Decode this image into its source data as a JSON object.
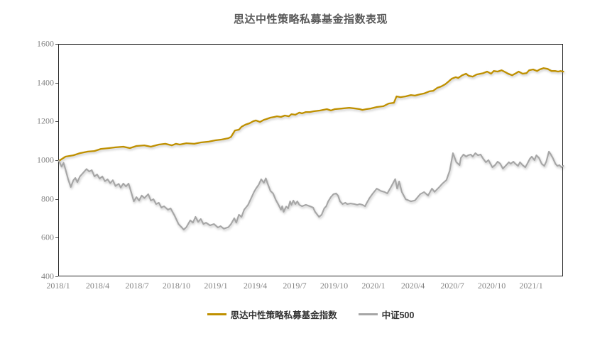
{
  "page": {
    "background": "#FFFFFF"
  },
  "colors": {
    "title_text": "#595959",
    "axis_label_text": "#848484",
    "plot_border": "#262626",
    "tick_mark": "#595959",
    "legend_text": "#333333"
  },
  "legend": {
    "position": "bottom-center"
  },
  "chart_data": {
    "type": "line",
    "title": "思达中性策略私募基金指数表现",
    "xlabel": "",
    "ylabel": "",
    "grid": "off",
    "legend_position": "bottom-center",
    "y_axis": {
      "min": 400,
      "max": 1600,
      "step": 200,
      "ticks": [
        400,
        600,
        800,
        1000,
        1200,
        1400,
        1600
      ]
    },
    "x_axis": {
      "unit": "months-since-2018/1",
      "min_month": 0,
      "max_month": 38.43,
      "tick_months": [
        0,
        3,
        6,
        9,
        12,
        15,
        18,
        21,
        24,
        27,
        30,
        33,
        36
      ],
      "tick_labels": [
        "2018/1",
        "2018/4",
        "2018/7",
        "2018/10",
        "2019/1",
        "2019/4",
        "2019/7",
        "2019/10",
        "2020/1",
        "2020/4",
        "2020/7",
        "2020/10",
        "2021/1"
      ]
    },
    "series": [
      {
        "name": "思达中性策略私募基金指数",
        "color": "#BF9000",
        "stroke_width": 2.3,
        "points": [
          [
            0,
            1000
          ],
          [
            0.5,
            1022
          ],
          [
            1.1,
            1029
          ],
          [
            1.6,
            1040
          ],
          [
            2.2,
            1048
          ],
          [
            2.7,
            1051
          ],
          [
            3.2,
            1062
          ],
          [
            3.8,
            1066
          ],
          [
            4.3,
            1070
          ],
          [
            4.9,
            1073
          ],
          [
            5.4,
            1066
          ],
          [
            5.9,
            1077
          ],
          [
            6.5,
            1080
          ],
          [
            7.0,
            1073
          ],
          [
            7.6,
            1084
          ],
          [
            8.1,
            1088
          ],
          [
            8.6,
            1080
          ],
          [
            8.9,
            1088
          ],
          [
            9.2,
            1084
          ],
          [
            9.7,
            1091
          ],
          [
            10.3,
            1088
          ],
          [
            10.8,
            1095
          ],
          [
            11.4,
            1099
          ],
          [
            11.9,
            1106
          ],
          [
            12.4,
            1110
          ],
          [
            12.9,
            1117
          ],
          [
            13.1,
            1124
          ],
          [
            13.4,
            1157
          ],
          [
            13.7,
            1161
          ],
          [
            13.9,
            1176
          ],
          [
            14.2,
            1187
          ],
          [
            14.5,
            1194
          ],
          [
            14.8,
            1205
          ],
          [
            15.0,
            1209
          ],
          [
            15.3,
            1201
          ],
          [
            15.6,
            1212
          ],
          [
            15.8,
            1216
          ],
          [
            16.1,
            1223
          ],
          [
            16.4,
            1227
          ],
          [
            16.6,
            1230
          ],
          [
            16.9,
            1227
          ],
          [
            17.2,
            1234
          ],
          [
            17.5,
            1230
          ],
          [
            17.7,
            1241
          ],
          [
            18.0,
            1238
          ],
          [
            18.3,
            1249
          ],
          [
            18.5,
            1245
          ],
          [
            18.8,
            1252
          ],
          [
            19.1,
            1252
          ],
          [
            19.4,
            1256
          ],
          [
            19.9,
            1260
          ],
          [
            20.4,
            1267
          ],
          [
            20.7,
            1260
          ],
          [
            21.0,
            1267
          ],
          [
            21.5,
            1270
          ],
          [
            22.1,
            1274
          ],
          [
            22.6,
            1270
          ],
          [
            22.9,
            1267
          ],
          [
            23.1,
            1263
          ],
          [
            23.4,
            1267
          ],
          [
            23.7,
            1270
          ],
          [
            24.2,
            1278
          ],
          [
            24.7,
            1282
          ],
          [
            25.1,
            1296
          ],
          [
            25.5,
            1300
          ],
          [
            25.7,
            1333
          ],
          [
            26.0,
            1329
          ],
          [
            26.4,
            1333
          ],
          [
            26.8,
            1340
          ],
          [
            27.1,
            1337
          ],
          [
            27.5,
            1344
          ],
          [
            27.8,
            1348
          ],
          [
            28.2,
            1359
          ],
          [
            28.5,
            1362
          ],
          [
            28.8,
            1377
          ],
          [
            29.1,
            1384
          ],
          [
            29.4,
            1395
          ],
          [
            29.6,
            1406
          ],
          [
            29.9,
            1424
          ],
          [
            30.2,
            1432
          ],
          [
            30.4,
            1428
          ],
          [
            30.7,
            1442
          ],
          [
            31.0,
            1450
          ],
          [
            31.2,
            1439
          ],
          [
            31.5,
            1435
          ],
          [
            31.8,
            1446
          ],
          [
            32.1,
            1450
          ],
          [
            32.3,
            1453
          ],
          [
            32.6,
            1461
          ],
          [
            32.9,
            1450
          ],
          [
            33.1,
            1464
          ],
          [
            33.4,
            1461
          ],
          [
            33.7,
            1468
          ],
          [
            33.9,
            1461
          ],
          [
            34.2,
            1450
          ],
          [
            34.5,
            1442
          ],
          [
            34.8,
            1453
          ],
          [
            35.0,
            1461
          ],
          [
            35.3,
            1450
          ],
          [
            35.6,
            1453
          ],
          [
            35.8,
            1468
          ],
          [
            36.1,
            1472
          ],
          [
            36.4,
            1464
          ],
          [
            36.6,
            1472
          ],
          [
            36.9,
            1479
          ],
          [
            37.2,
            1475
          ],
          [
            37.5,
            1464
          ],
          [
            37.8,
            1464
          ],
          [
            38.0,
            1461
          ],
          [
            38.2,
            1464
          ],
          [
            38.4,
            1461
          ]
        ]
      },
      {
        "name": "中证500",
        "color": "#A6A6A6",
        "stroke_width": 2.1,
        "points": [
          [
            0,
            1000
          ],
          [
            0.2,
            970
          ],
          [
            0.35,
            990
          ],
          [
            0.5,
            955
          ],
          [
            0.7,
            905
          ],
          [
            0.9,
            865
          ],
          [
            1.1,
            900
          ],
          [
            1.25,
            912
          ],
          [
            1.4,
            890
          ],
          [
            1.6,
            920
          ],
          [
            1.8,
            935
          ],
          [
            2.1,
            958
          ],
          [
            2.3,
            945
          ],
          [
            2.5,
            952
          ],
          [
            2.7,
            920
          ],
          [
            2.9,
            930
          ],
          [
            3.1,
            908
          ],
          [
            3.3,
            920
          ],
          [
            3.5,
            895
          ],
          [
            3.7,
            905
          ],
          [
            3.9,
            885
          ],
          [
            4.1,
            900
          ],
          [
            4.3,
            870
          ],
          [
            4.55,
            882
          ],
          [
            4.7,
            862
          ],
          [
            4.9,
            883
          ],
          [
            5.1,
            868
          ],
          [
            5.3,
            883
          ],
          [
            5.5,
            838
          ],
          [
            5.7,
            791
          ],
          [
            5.9,
            813
          ],
          [
            6.1,
            795
          ],
          [
            6.3,
            821
          ],
          [
            6.5,
            808
          ],
          [
            6.8,
            828
          ],
          [
            7.0,
            795
          ],
          [
            7.2,
            802
          ],
          [
            7.4,
            777
          ],
          [
            7.6,
            784
          ],
          [
            7.8,
            759
          ],
          [
            8.0,
            766
          ],
          [
            8.3,
            748
          ],
          [
            8.5,
            755
          ],
          [
            8.8,
            718
          ],
          [
            9.1,
            674
          ],
          [
            9.35,
            656
          ],
          [
            9.5,
            645
          ],
          [
            9.7,
            658
          ],
          [
            10.0,
            693
          ],
          [
            10.2,
            681
          ],
          [
            10.4,
            711
          ],
          [
            10.6,
            685
          ],
          [
            10.8,
            700
          ],
          [
            11.0,
            674
          ],
          [
            11.2,
            681
          ],
          [
            11.5,
            667
          ],
          [
            11.8,
            674
          ],
          [
            12.1,
            656
          ],
          [
            12.3,
            663
          ],
          [
            12.55,
            650
          ],
          [
            12.9,
            658
          ],
          [
            13.1,
            674
          ],
          [
            13.35,
            704
          ],
          [
            13.5,
            681
          ],
          [
            13.7,
            722
          ],
          [
            13.9,
            711
          ],
          [
            14.1,
            748
          ],
          [
            14.4,
            773
          ],
          [
            14.6,
            802
          ],
          [
            14.85,
            839
          ],
          [
            15.0,
            857
          ],
          [
            15.2,
            876
          ],
          [
            15.4,
            905
          ],
          [
            15.6,
            887
          ],
          [
            15.75,
            910
          ],
          [
            15.9,
            880
          ],
          [
            16.1,
            845
          ],
          [
            16.3,
            832
          ],
          [
            16.5,
            800
          ],
          [
            16.7,
            775
          ],
          [
            16.9,
            748
          ],
          [
            17.0,
            766
          ],
          [
            17.1,
            737
          ],
          [
            17.3,
            764
          ],
          [
            17.45,
            755
          ],
          [
            17.6,
            791
          ],
          [
            17.7,
            773
          ],
          [
            17.85,
            795
          ],
          [
            18.0,
            777
          ],
          [
            18.15,
            791
          ],
          [
            18.3,
            773
          ],
          [
            18.5,
            766
          ],
          [
            18.8,
            773
          ],
          [
            19.1,
            766
          ],
          [
            19.35,
            759
          ],
          [
            19.5,
            737
          ],
          [
            19.8,
            711
          ],
          [
            20.0,
            722
          ],
          [
            20.2,
            755
          ],
          [
            20.35,
            766
          ],
          [
            20.5,
            791
          ],
          [
            20.7,
            813
          ],
          [
            20.9,
            828
          ],
          [
            21.1,
            832
          ],
          [
            21.25,
            821
          ],
          [
            21.4,
            791
          ],
          [
            21.6,
            777
          ],
          [
            21.8,
            784
          ],
          [
            21.95,
            777
          ],
          [
            22.2,
            780
          ],
          [
            22.5,
            777
          ],
          [
            22.7,
            773
          ],
          [
            22.9,
            777
          ],
          [
            23.1,
            773
          ],
          [
            23.3,
            766
          ],
          [
            23.5,
            791
          ],
          [
            23.65,
            809
          ],
          [
            23.9,
            832
          ],
          [
            24.2,
            857
          ],
          [
            24.5,
            845
          ],
          [
            24.8,
            839
          ],
          [
            25.0,
            832
          ],
          [
            25.3,
            868
          ],
          [
            25.6,
            906
          ],
          [
            25.75,
            857
          ],
          [
            25.9,
            894
          ],
          [
            26.1,
            840
          ],
          [
            26.4,
            802
          ],
          [
            26.8,
            791
          ],
          [
            27.1,
            796
          ],
          [
            27.5,
            828
          ],
          [
            27.8,
            839
          ],
          [
            28.1,
            821
          ],
          [
            28.4,
            857
          ],
          [
            28.6,
            840
          ],
          [
            29.0,
            868
          ],
          [
            29.2,
            883
          ],
          [
            29.5,
            901
          ],
          [
            29.75,
            949
          ],
          [
            30.0,
            1040
          ],
          [
            30.25,
            993
          ],
          [
            30.5,
            978
          ],
          [
            30.6,
            1015
          ],
          [
            30.8,
            1033
          ],
          [
            31.0,
            1022
          ],
          [
            31.15,
            1029
          ],
          [
            31.35,
            1033
          ],
          [
            31.5,
            1022
          ],
          [
            31.7,
            1040
          ],
          [
            31.9,
            1029
          ],
          [
            32.1,
            1033
          ],
          [
            32.3,
            1011
          ],
          [
            32.5,
            993
          ],
          [
            32.7,
            1004
          ],
          [
            32.85,
            985
          ],
          [
            33.0,
            967
          ],
          [
            33.2,
            978
          ],
          [
            33.4,
            996
          ],
          [
            33.6,
            985
          ],
          [
            33.8,
            960
          ],
          [
            34.05,
            978
          ],
          [
            34.25,
            993
          ],
          [
            34.4,
            985
          ],
          [
            34.6,
            996
          ],
          [
            34.75,
            985
          ],
          [
            34.95,
            974
          ],
          [
            35.1,
            993
          ],
          [
            35.3,
            978
          ],
          [
            35.5,
            967
          ],
          [
            35.65,
            985
          ],
          [
            35.85,
            1011
          ],
          [
            36.0,
            1022
          ],
          [
            36.2,
            1004
          ],
          [
            36.35,
            1029
          ],
          [
            36.55,
            1015
          ],
          [
            36.75,
            985
          ],
          [
            36.95,
            974
          ],
          [
            37.1,
            996
          ],
          [
            37.3,
            1048
          ],
          [
            37.45,
            1033
          ],
          [
            37.6,
            1015
          ],
          [
            37.8,
            985
          ],
          [
            37.95,
            974
          ],
          [
            38.1,
            978
          ],
          [
            38.25,
            967
          ],
          [
            38.4,
            974
          ]
        ]
      }
    ]
  }
}
